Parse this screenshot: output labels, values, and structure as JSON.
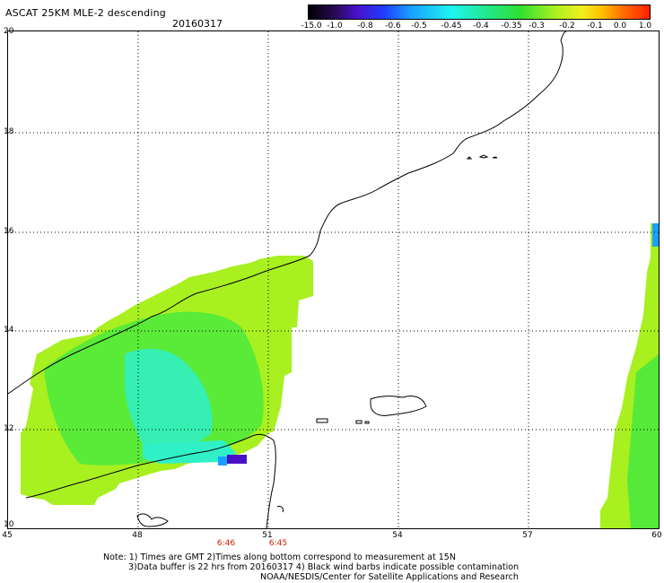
{
  "header": {
    "title": "ASCAT 25KM MLE-2 descending",
    "date": "20160317"
  },
  "colorbar": {
    "ticks": [
      "-15.0",
      "-1.0",
      "-0.8",
      "-0.6",
      "-0.5",
      "-0.45",
      "-0.4",
      "-0.35",
      "-0.3",
      "-0.2",
      "-0.1",
      "0.0",
      "1.0"
    ]
  },
  "axes": {
    "y_ticks": [
      "20",
      "18",
      "16",
      "14",
      "12",
      "10"
    ],
    "x_ticks": [
      "45",
      "48",
      "51",
      "54",
      "57",
      "60"
    ]
  },
  "times": [
    "6:46",
    "6:45"
  ],
  "notes": {
    "line1": "Note: 1) Times are GMT 2)Times along bottom correspond to measurement at 15N",
    "line2": "3)Data buffer is 22 hrs from 20160317 4) Black wind barbs indicate possible contamination",
    "line3": "NOAA/NESDIS/Center for Satellite Applications and Research"
  },
  "colors": {
    "swath_main": "#a8f020",
    "swath_green": "#40e840",
    "swath_cyan": "#30f0c8",
    "swath_blue": "#1aa0ff",
    "swath_purple": "#4a10c8"
  }
}
